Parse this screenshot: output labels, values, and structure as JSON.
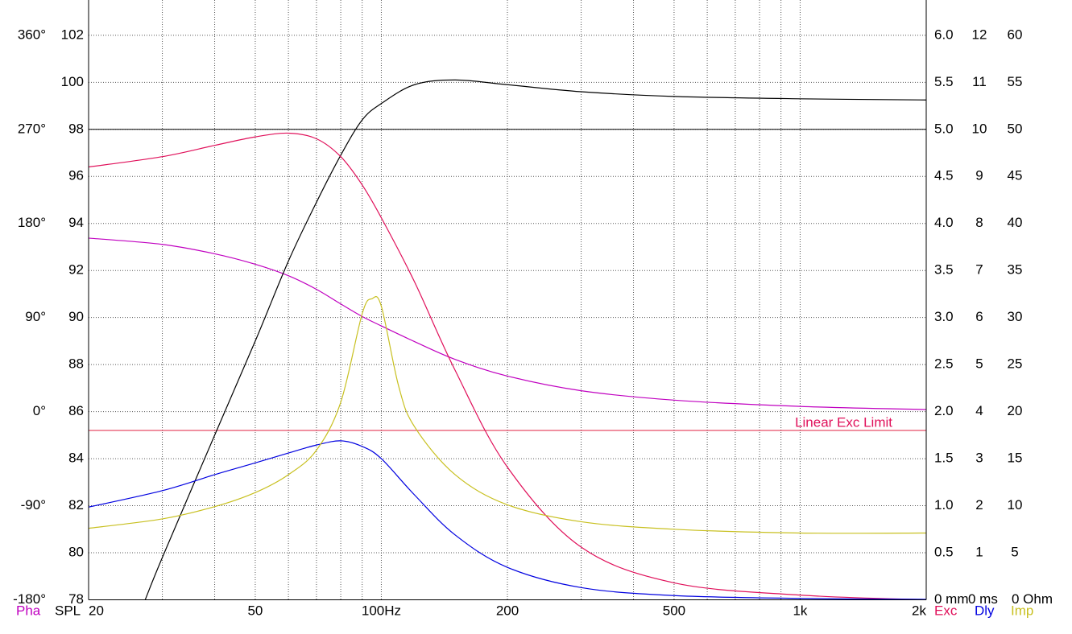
{
  "chart_data": {
    "type": "line",
    "xscale": "log",
    "xlim": [
      20,
      2000
    ],
    "xticks": [
      20,
      50,
      {
        "value": 100,
        "label": "100Hz"
      },
      200,
      500,
      {
        "value": 1000,
        "label": "1k"
      },
      {
        "value": 2000,
        "label": "2k"
      }
    ],
    "xgrid_minor": [
      30,
      40,
      60,
      70,
      80,
      90,
      300,
      400,
      600,
      700,
      800,
      900
    ],
    "grid": true,
    "series": [
      {
        "name": "Pha",
        "color": "#c000c0",
        "ylim": [
          -180,
          393.75
        ],
        "yticks": [
          {
            "value": -180,
            "label": "-180°"
          },
          {
            "value": -90,
            "label": "-90°"
          },
          {
            "value": 0,
            "label": "0°"
          },
          {
            "value": 90,
            "label": "90°"
          },
          {
            "value": 180,
            "label": "180°"
          },
          {
            "value": 270,
            "label": "270°"
          },
          {
            "value": 360,
            "label": "360°"
          }
        ],
        "x": [
          20,
          30,
          40,
          50,
          60,
          70,
          80,
          90,
          100,
          120,
          150,
          200,
          300,
          500,
          1000,
          2000
        ],
        "values": [
          166,
          160,
          151,
          141,
          130,
          117,
          103,
          91,
          82,
          67,
          50,
          34,
          20,
          11,
          5,
          2
        ]
      },
      {
        "name": "SPL",
        "color": "#000000",
        "ylim": [
          78,
          103.5
        ],
        "yticks": [
          78,
          80,
          82,
          84,
          86,
          88,
          90,
          92,
          94,
          96,
          98,
          100,
          102
        ],
        "reference": 98,
        "x": [
          27.3,
          30,
          40,
          50,
          60,
          70,
          80,
          90,
          100,
          120,
          150,
          200,
          300,
          500,
          1000,
          2000
        ],
        "values": [
          78.0,
          79.8,
          85.0,
          89.0,
          92.4,
          94.9,
          96.9,
          98.4,
          99.1,
          99.9,
          100.1,
          99.9,
          99.6,
          99.4,
          99.3,
          99.25
        ]
      },
      {
        "name": "Exc",
        "color": "#e0105a",
        "ylim": [
          0,
          6.375
        ],
        "yticks": [
          {
            "value": 0,
            "label": "0 mm"
          },
          0.5,
          {
            "value": 1,
            "label": "1.0"
          },
          1.5,
          {
            "value": 2,
            "label": "2.0"
          },
          2.5,
          {
            "value": 3,
            "label": "3.0"
          },
          3.5,
          {
            "value": 4,
            "label": "4.0"
          },
          4.5,
          {
            "value": 5,
            "label": "5.0"
          },
          5.5,
          {
            "value": 6,
            "label": "6.0"
          }
        ],
        "limit": {
          "text": "Linear Exc Limit",
          "value": 1.8
        },
        "x": [
          20,
          30,
          40,
          50,
          60,
          70,
          80,
          90,
          100,
          120,
          150,
          200,
          300,
          500,
          1000,
          2000
        ],
        "values": [
          4.6,
          4.71,
          4.83,
          4.92,
          4.96,
          4.9,
          4.71,
          4.41,
          4.06,
          3.38,
          2.44,
          1.41,
          0.56,
          0.18,
          0.05,
          0.0
        ]
      },
      {
        "name": "Dly",
        "color": "#0000e0",
        "ylim": [
          0,
          12.75
        ],
        "yticks": [
          {
            "value": 0,
            "label": "0 ms"
          },
          1,
          2,
          3,
          4,
          5,
          6,
          7,
          8,
          9,
          10,
          11,
          12
        ],
        "x": [
          20,
          30,
          40,
          50,
          60,
          70,
          80,
          90,
          100,
          120,
          150,
          200,
          300,
          500,
          1000,
          2000
        ],
        "values": [
          1.97,
          2.32,
          2.66,
          2.91,
          3.12,
          3.29,
          3.38,
          3.26,
          3.0,
          2.23,
          1.38,
          0.69,
          0.26,
          0.09,
          0.03,
          0.01
        ]
      },
      {
        "name": "Imp",
        "color": "#c8c020",
        "ylim": [
          0,
          63.75
        ],
        "yticks": [
          {
            "value": 0,
            "label": "0 Ohm"
          },
          5,
          10,
          15,
          20,
          25,
          30,
          35,
          40,
          45,
          50,
          55,
          60
        ],
        "x": [
          20,
          30,
          40,
          50,
          60,
          70,
          80,
          90,
          95,
          100,
          110,
          120,
          150,
          200,
          300,
          500,
          1000,
          2000
        ],
        "values": [
          7.6,
          8.6,
          9.9,
          11.4,
          13.3,
          15.9,
          21.0,
          30.4,
          32.0,
          31.2,
          22.7,
          18.4,
          13.3,
          10.1,
          8.3,
          7.5,
          7.1,
          7.1
        ]
      }
    ]
  }
}
